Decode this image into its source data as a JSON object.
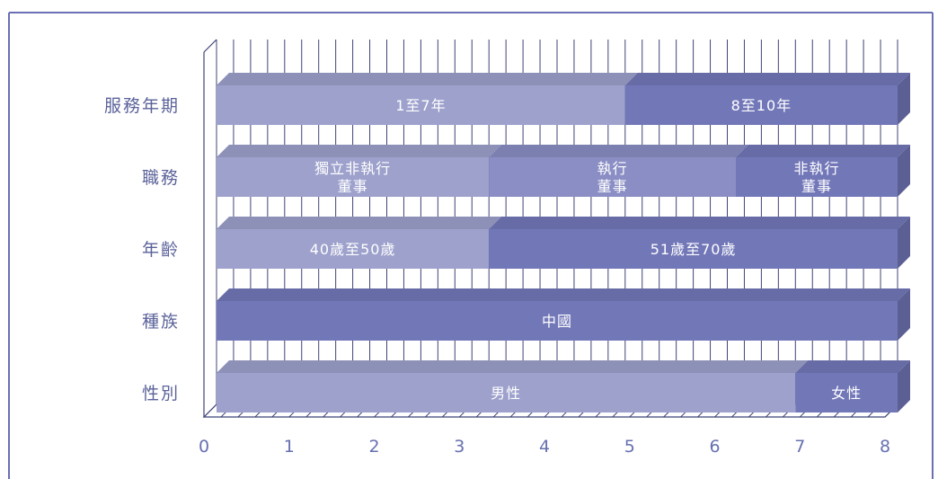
{
  "chart_data": {
    "type": "bar",
    "stacked": true,
    "orientation": "horizontal",
    "title": "",
    "xlabel": "",
    "ylabel": "",
    "xlim": [
      0,
      8
    ],
    "xticks": [
      "0",
      "1",
      "2",
      "3",
      "4",
      "5",
      "6",
      "7",
      "8"
    ],
    "categories": [
      "服務年期",
      "職務",
      "年齡",
      "種族",
      "性別"
    ],
    "bars": [
      {
        "category": "服務年期",
        "segments": [
          {
            "label": "1至7年",
            "value": 4.8,
            "color": "#9da1cc"
          },
          {
            "label": "8至10年",
            "value": 3.2,
            "color": "#7277b8"
          }
        ]
      },
      {
        "category": "職務",
        "segments": [
          {
            "label": "獨立非執行\n董事",
            "value": 3.2,
            "color": "#9da1cc"
          },
          {
            "label": "執行\n董事",
            "value": 2.9,
            "color": "#8a8ec4"
          },
          {
            "label": "非執行\n董事",
            "value": 1.9,
            "color": "#7277b8"
          }
        ]
      },
      {
        "category": "年齡",
        "segments": [
          {
            "label": "40歲至50歲",
            "value": 3.2,
            "color": "#9da1cc"
          },
          {
            "label": "51歲至70歲",
            "value": 4.8,
            "color": "#7277b8"
          }
        ]
      },
      {
        "category": "種族",
        "segments": [
          {
            "label": "中國",
            "value": 8,
            "color": "#7277b8"
          }
        ]
      },
      {
        "category": "性別",
        "segments": [
          {
            "label": "男性",
            "value": 6.8,
            "color": "#9da1cc"
          },
          {
            "label": "女性",
            "value": 1.2,
            "color": "#7277b8"
          }
        ]
      }
    ],
    "grid": true,
    "legend": "none",
    "colors": {
      "frame": "#6a70b4",
      "grid": "#3f4477",
      "axis_text": "#6670b0",
      "category_text": "#5b629a"
    }
  }
}
